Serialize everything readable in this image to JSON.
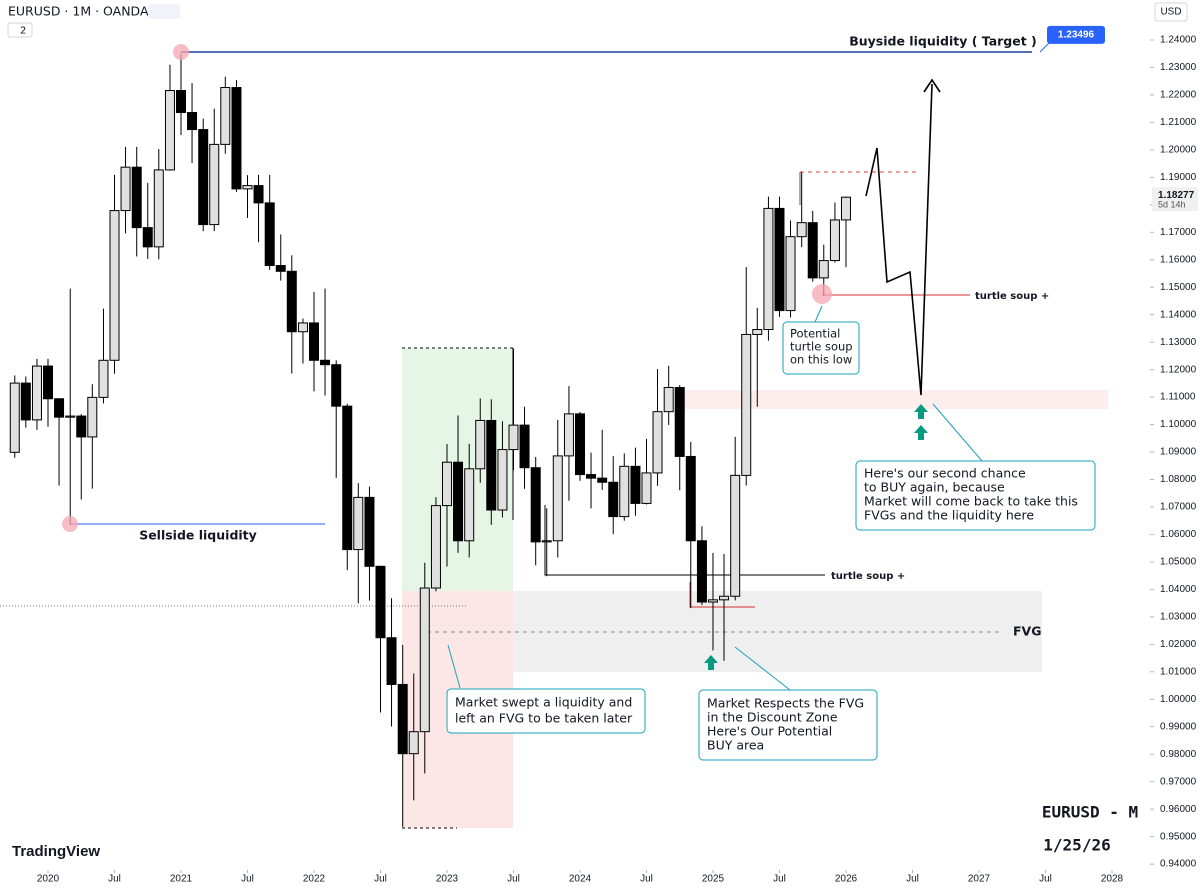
{
  "chart_data": {
    "type": "candlestick",
    "title": "EURUSD · 1M · OANDA",
    "indicator_count": "2",
    "currency": "USD",
    "brand": "TradingView",
    "watermark": "EURUSD - M",
    "date_label": "1/25/26",
    "last_price": 1.18277,
    "countdown": "5d 14h",
    "target_price": 1.23496,
    "up_color": "#e0e0e0",
    "down_color": "#000000",
    "annotations": {
      "buyside": "Buyside liquidity ( Target )",
      "sellside": "Sellside liquidity",
      "turtle_upper": "turtle soup +",
      "turtle_lower": "turtle soup +",
      "fvg": "FVG",
      "potential": [
        "Potential",
        "turtle soup",
        "on this low"
      ],
      "second_chance": [
        "Here's our second chance",
        "to BUY again, because",
        "Market will come back to take this",
        "FVGs and the liquidity here"
      ],
      "swept": [
        "Market swept a liquidity and",
        "left an FVG to be taken later"
      ],
      "respects": [
        "Market Respects the FVG",
        "in the Discount Zone",
        "Here's Our Potential",
        "BUY area"
      ]
    },
    "x": [
      2019.75,
      2019.833,
      2019.917,
      2020.0,
      2020.083,
      2020.167,
      2020.25,
      2020.333,
      2020.417,
      2020.5,
      2020.583,
      2020.667,
      2020.75,
      2020.833,
      2020.917,
      2021.0,
      2021.083,
      2021.167,
      2021.25,
      2021.333,
      2021.417,
      2021.5,
      2021.583,
      2021.667,
      2021.75,
      2021.833,
      2021.917,
      2022.0,
      2022.083,
      2022.167,
      2022.25,
      2022.333,
      2022.417,
      2022.5,
      2022.583,
      2022.667,
      2022.75,
      2022.833,
      2022.917,
      2023.0,
      2023.083,
      2023.167,
      2023.25,
      2023.333,
      2023.417,
      2023.5,
      2023.583,
      2023.667,
      2023.75,
      2023.833,
      2023.917,
      2024.0,
      2024.083,
      2024.167,
      2024.25,
      2024.333,
      2024.417,
      2024.5,
      2024.583,
      2024.667,
      2024.75,
      2024.833,
      2024.917,
      2025.0,
      2025.083,
      2025.167,
      2025.25,
      2025.333,
      2025.417,
      2025.5,
      2025.583,
      2025.667,
      2025.75,
      2025.833,
      2025.917,
      2026.0
    ],
    "open": [
      1.0899,
      1.1151,
      1.1017,
      1.1213,
      1.1094,
      1.1027,
      1.1031,
      1.0955,
      1.1099,
      1.1234,
      1.1779,
      1.1937,
      1.1717,
      1.1647,
      1.1927,
      1.2216,
      1.2136,
      1.2074,
      1.1728,
      1.202,
      1.2227,
      1.1858,
      1.187,
      1.1807,
      1.1579,
      1.1558,
      1.1338,
      1.137,
      1.1234,
      1.1218,
      1.1067,
      1.0545,
      1.0735,
      1.0484,
      1.0224,
      1.0054,
      0.9802,
      0.9882,
      1.0405,
      1.0705,
      1.0863,
      1.0577,
      1.0839,
      1.1015,
      1.0689,
      1.0909,
      1.0998,
      1.0843,
      1.0573,
      1.0577,
      1.0886,
      1.1039,
      1.0818,
      1.0805,
      1.079,
      1.0665,
      1.0848,
      1.0713,
      1.0824,
      1.1047,
      1.1135,
      1.0884,
      1.0577,
      1.0354,
      1.0362,
      1.0375,
      1.0815,
      1.1328,
      1.1346,
      1.1787,
      1.1415,
      1.1684,
      1.1735,
      1.1534,
      1.1597,
      1.1745
    ],
    "high": [
      1.1179,
      1.1175,
      1.1239,
      1.1239,
      1.1096,
      1.1495,
      1.1038,
      1.1147,
      1.1422,
      1.1909,
      1.2011,
      1.2011,
      1.188,
      1.2003,
      1.231,
      1.235,
      1.2243,
      1.2114,
      1.215,
      1.2266,
      1.2254,
      1.1908,
      1.1909,
      1.1909,
      1.1692,
      1.1616,
      1.1386,
      1.1483,
      1.1495,
      1.1234,
      1.1076,
      1.0787,
      1.0774,
      1.0486,
      1.0368,
      1.0198,
      1.0094,
      1.0497,
      1.0736,
      1.0929,
      1.1033,
      1.093,
      1.1095,
      1.1092,
      1.1012,
      1.1276,
      1.1065,
      1.0882,
      1.0695,
      1.1017,
      1.114,
      1.1046,
      1.0898,
      1.0981,
      1.0885,
      1.0895,
      1.0916,
      1.0948,
      1.1202,
      1.1214,
      1.1144,
      1.0937,
      1.063,
      1.0533,
      1.0529,
      1.0955,
      1.1573,
      1.1425,
      1.183,
      1.183,
      1.1743,
      1.1919,
      1.1778,
      1.1655,
      1.1808,
      1.183
    ],
    "low": [
      1.0879,
      1.0989,
      1.0981,
      1.0992,
      1.0778,
      1.0636,
      1.0727,
      1.0767,
      1.1077,
      1.1185,
      1.1696,
      1.1612,
      1.1603,
      1.1602,
      1.1924,
      1.2054,
      1.1952,
      1.1704,
      1.1704,
      1.1986,
      1.1847,
      1.1752,
      1.1664,
      1.1563,
      1.1524,
      1.1186,
      1.1222,
      1.1121,
      1.1106,
      1.0806,
      1.047,
      1.0349,
      1.0359,
      0.9952,
      0.9901,
      0.9536,
      0.9632,
      0.973,
      1.0393,
      1.0483,
      1.0533,
      1.0516,
      1.0788,
      1.0635,
      1.0662,
      1.0834,
      1.0766,
      1.0488,
      1.0448,
      1.0516,
      1.0723,
      1.0795,
      1.0695,
      1.0762,
      1.0601,
      1.065,
      1.0668,
      1.0709,
      1.0777,
      1.0999,
      1.0761,
      1.0332,
      1.0343,
      1.0178,
      1.014,
      1.036,
      1.0778,
      1.1065,
      1.1305,
      1.1392,
      1.139,
      1.1646,
      1.152,
      1.1468,
      1.159,
      1.1573
    ],
    "close": [
      1.1151,
      1.1017,
      1.1213,
      1.1094,
      1.1027,
      1.1031,
      1.0955,
      1.1099,
      1.1234,
      1.1779,
      1.1937,
      1.1717,
      1.1647,
      1.1927,
      1.2216,
      1.2136,
      1.2074,
      1.1728,
      1.202,
      1.2227,
      1.1858,
      1.187,
      1.1807,
      1.1579,
      1.1558,
      1.1338,
      1.137,
      1.1234,
      1.1218,
      1.1067,
      1.0545,
      1.0735,
      1.0484,
      1.0224,
      1.0054,
      0.9802,
      0.9882,
      1.0405,
      1.0705,
      1.0863,
      1.0577,
      1.0839,
      1.1015,
      1.0689,
      1.0909,
      1.0998,
      1.0843,
      1.0573,
      1.0577,
      1.0886,
      1.1039,
      1.0818,
      1.0805,
      1.079,
      1.0665,
      1.0848,
      1.0713,
      1.0824,
      1.1047,
      1.1135,
      1.0884,
      1.0577,
      1.0354,
      1.0362,
      1.0375,
      1.0815,
      1.1328,
      1.1346,
      1.1787,
      1.1415,
      1.1684,
      1.1735,
      1.1534,
      1.1597,
      1.1745,
      1.18277
    ],
    "xlim": [
      2019.639,
      2028.286
    ],
    "ylim": [
      0.93785,
      1.25456
    ],
    "xticks": [
      2020,
      {
        "value": 2020.5,
        "label": "Jul"
      },
      2021,
      {
        "value": 2021.5,
        "label": "Jul"
      },
      2022,
      {
        "value": 2022.5,
        "label": "Jul"
      },
      2023,
      {
        "value": 2023.5,
        "label": "Jul"
      },
      2024,
      {
        "value": 2024.5,
        "label": "Jul"
      },
      2025,
      {
        "value": 2025.5,
        "label": "Jul"
      },
      2026,
      {
        "value": 2026.5,
        "label": "Jul"
      },
      2027,
      {
        "value": 2027.5,
        "label": "Jul"
      },
      2028
    ],
    "yticks": [
      {
        "value": 0.94,
        "label": "0.94000"
      },
      {
        "value": 0.95,
        "label": "0.95000"
      },
      {
        "value": 0.96,
        "label": "0.96000"
      },
      {
        "value": 0.97,
        "label": "0.97000"
      },
      {
        "value": 0.98,
        "label": "0.98000"
      },
      {
        "value": 0.99,
        "label": "0.99000"
      },
      {
        "value": 1.0,
        "label": "1.00000"
      },
      {
        "value": 1.01,
        "label": "1.01000"
      },
      {
        "value": 1.02,
        "label": "1.02000"
      },
      {
        "value": 1.03,
        "label": "1.03000"
      },
      {
        "value": 1.04,
        "label": "1.04000"
      },
      {
        "value": 1.05,
        "label": "1.05000"
      },
      {
        "value": 1.06,
        "label": "1.06000"
      },
      {
        "value": 1.07,
        "label": "1.07000"
      },
      {
        "value": 1.08,
        "label": "1.08000"
      },
      {
        "value": 1.09,
        "label": "1.09000"
      },
      {
        "value": 1.1,
        "label": "1.10000"
      },
      {
        "value": 1.11,
        "label": "1.11000"
      },
      {
        "value": 1.12,
        "label": "1.12000"
      },
      {
        "value": 1.13,
        "label": "1.13000"
      },
      {
        "value": 1.14,
        "label": "1.14000"
      },
      {
        "value": 1.15,
        "label": "1.15000"
      },
      {
        "value": 1.16,
        "label": "1.16000"
      },
      {
        "value": 1.17,
        "label": "1.17000"
      },
      {
        "value": 1.18,
        "label": "1.18000"
      },
      {
        "value": 1.19,
        "label": "1.19000"
      },
      {
        "value": 1.2,
        "label": "1.20000"
      },
      {
        "value": 1.21,
        "label": "1.21000"
      },
      {
        "value": 1.22,
        "label": "1.22000"
      },
      {
        "value": 1.23,
        "label": "1.23000"
      },
      {
        "value": 1.24,
        "label": "1.24000"
      }
    ],
    "grid": false
  }
}
